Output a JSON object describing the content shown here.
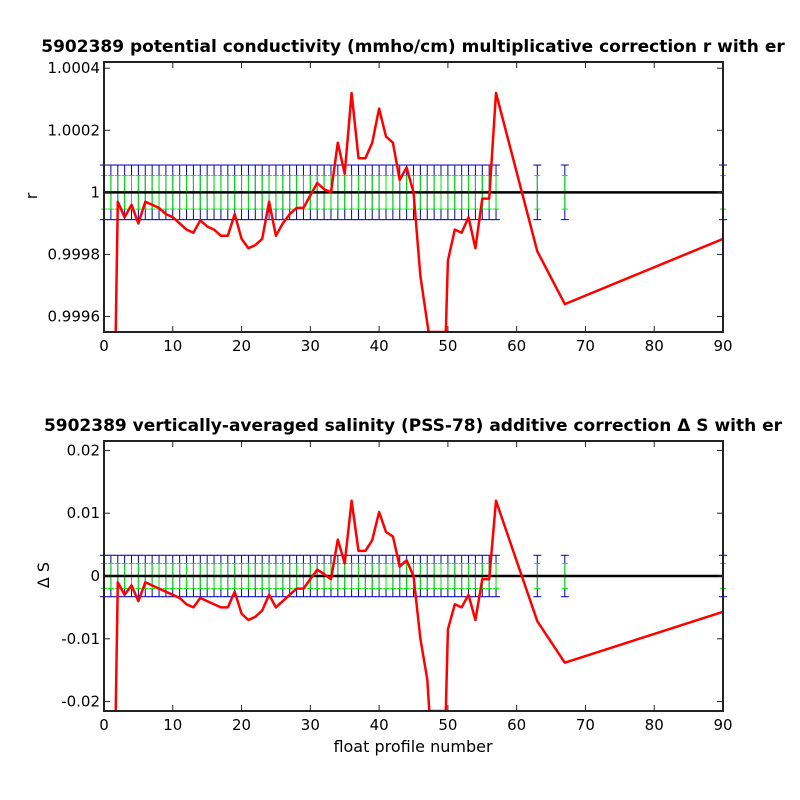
{
  "chart_data": [
    {
      "type": "line",
      "title": "5902389 potential conductivity (mmho/cm) multiplicative correction r with er",
      "xlabel": "",
      "ylabel": "r",
      "xlim": [
        0,
        90
      ],
      "ylim": [
        0.99955,
        1.00042
      ],
      "xticks": [
        0,
        10,
        20,
        30,
        40,
        50,
        60,
        70,
        80,
        90
      ],
      "xtick_labels": [
        "0",
        "10",
        "20",
        "30",
        "40",
        "50",
        "60",
        "70",
        "80",
        "90"
      ],
      "yticks": [
        0.9996,
        0.9998,
        1.0,
        1.0002,
        1.0004
      ],
      "ytick_labels": [
        "0.9996",
        "0.9998",
        "1",
        "1.0002",
        "1.0004"
      ],
      "reference_line": 1.0,
      "grid": false,
      "series": [
        {
          "color": "#ff0000",
          "x": [
            1.7,
            2,
            3,
            4,
            5,
            6,
            7,
            8,
            9,
            10,
            11,
            12,
            13,
            14,
            15,
            16,
            17,
            18,
            19,
            20,
            21,
            22,
            23,
            24,
            25,
            26,
            27,
            28,
            29,
            30,
            31,
            32,
            33,
            34,
            35,
            36,
            37,
            38,
            39,
            40,
            41,
            42,
            43,
            44,
            45,
            46,
            47.2,
            49.7,
            50,
            51,
            52,
            53,
            54,
            55,
            56,
            57,
            63,
            67,
            90
          ],
          "y": [
            0.99955,
            0.99997,
            0.99992,
            0.99996,
            0.9999,
            0.99997,
            0.99996,
            0.99995,
            0.99993,
            0.99992,
            0.9999,
            0.99988,
            0.99987,
            0.99991,
            0.99989,
            0.99988,
            0.99986,
            0.99986,
            0.99993,
            0.99985,
            0.99982,
            0.99983,
            0.99985,
            0.99997,
            0.99986,
            0.9999,
            0.99993,
            0.99995,
            0.99995,
            0.99999,
            1.00003,
            1.00001,
            1.0,
            1.00016,
            1.00006,
            1.00032,
            1.00011,
            1.00011,
            1.00016,
            1.00027,
            1.00018,
            1.00016,
            1.00004,
            1.00008,
            1.0,
            0.99973,
            0.99955,
            0.99955,
            0.99978,
            0.99988,
            0.99987,
            0.99992,
            0.99982,
            0.99998,
            0.99998,
            1.00032,
            0.99981,
            0.99964,
            0.99985
          ]
        }
      ],
      "error_bars": [
        {
          "color": "#0000b0",
          "x": [
            0,
            1,
            2,
            3,
            4,
            5,
            6,
            7,
            8,
            9,
            10,
            11,
            12,
            13,
            14,
            15,
            16,
            17,
            18,
            19,
            20,
            21,
            22,
            23,
            24,
            25,
            26,
            27,
            28,
            29,
            30,
            31,
            32,
            33,
            34,
            35,
            36,
            37,
            38,
            39,
            40,
            41,
            42,
            43,
            44,
            45,
            46,
            47,
            48,
            49,
            50,
            51,
            52,
            53,
            54,
            55,
            56,
            57,
            63,
            67,
            90
          ],
          "center": 1.0,
          "half_width": 8.8e-05
        },
        {
          "color": "#00ee00",
          "x": [
            0,
            1,
            2,
            3,
            4,
            5,
            6,
            7,
            8,
            9,
            10,
            11,
            12,
            13,
            14,
            15,
            16,
            17,
            18,
            19,
            20,
            21,
            22,
            23,
            24,
            25,
            26,
            27,
            28,
            29,
            30,
            31,
            32,
            33,
            34,
            35,
            36,
            37,
            38,
            39,
            40,
            41,
            42,
            43,
            44,
            45,
            46,
            47,
            48,
            49,
            50,
            51,
            52,
            53,
            54,
            55,
            56,
            57,
            63,
            67,
            90
          ],
          "center": 1.0,
          "half_width": 5.4e-05
        }
      ]
    },
    {
      "type": "line",
      "title": "5902389 vertically-averaged salinity (PSS-78) additive correction Δ S with er",
      "xlabel": "float profile number",
      "ylabel": "Δ S",
      "xlim": [
        0,
        90
      ],
      "ylim": [
        -0.0215,
        0.0215
      ],
      "xticks": [
        0,
        10,
        20,
        30,
        40,
        50,
        60,
        70,
        80,
        90
      ],
      "xtick_labels": [
        "0",
        "10",
        "20",
        "30",
        "40",
        "50",
        "60",
        "70",
        "80",
        "90"
      ],
      "yticks": [
        -0.02,
        -0.01,
        0,
        0.01,
        0.02
      ],
      "ytick_labels": [
        "-0.02",
        "-0.01",
        "0",
        "0.01",
        "0.02"
      ],
      "reference_line": 0,
      "grid": false,
      "series": [
        {
          "color": "#ff0000",
          "x": [
            1.7,
            2,
            3,
            4,
            5,
            6,
            7,
            8,
            9,
            10,
            11,
            12,
            13,
            14,
            15,
            16,
            17,
            18,
            19,
            20,
            21,
            22,
            23,
            24,
            25,
            26,
            27,
            28,
            29,
            30,
            31,
            32,
            33,
            34,
            35,
            36,
            37,
            38,
            39,
            40,
            41,
            42,
            43,
            44,
            45,
            46,
            47,
            47.3,
            49.7,
            50,
            51,
            52,
            53,
            54,
            55,
            56,
            57,
            63,
            67,
            90
          ],
          "y": [
            -0.0215,
            -0.001,
            -0.003,
            -0.0015,
            -0.004,
            -0.001,
            -0.0015,
            -0.002,
            -0.0025,
            -0.003,
            -0.0035,
            -0.0045,
            -0.005,
            -0.0035,
            -0.004,
            -0.0045,
            -0.005,
            -0.005,
            -0.0025,
            -0.006,
            -0.007,
            -0.0065,
            -0.0055,
            -0.003,
            -0.005,
            -0.004,
            -0.003,
            -0.002,
            -0.002,
            -0.0005,
            0.001,
            0.0003,
            -0.0005,
            0.0058,
            0.002,
            0.012,
            0.004,
            0.004,
            0.0057,
            0.0102,
            0.007,
            0.0063,
            0.0015,
            0.0025,
            0.0,
            -0.01,
            -0.0165,
            -0.0215,
            -0.0215,
            -0.0085,
            -0.0045,
            -0.005,
            -0.003,
            -0.007,
            -0.0005,
            -0.0005,
            0.012,
            -0.0072,
            -0.0138,
            -0.0057
          ]
        }
      ],
      "error_bars": [
        {
          "color": "#0000b0",
          "x": [
            0,
            1,
            2,
            3,
            4,
            5,
            6,
            7,
            8,
            9,
            10,
            11,
            12,
            13,
            14,
            15,
            16,
            17,
            18,
            19,
            20,
            21,
            22,
            23,
            24,
            25,
            26,
            27,
            28,
            29,
            30,
            31,
            32,
            33,
            34,
            35,
            36,
            37,
            38,
            39,
            40,
            41,
            42,
            43,
            44,
            45,
            46,
            47,
            48,
            49,
            50,
            51,
            52,
            53,
            54,
            55,
            56,
            57,
            63,
            67,
            90
          ],
          "center": 0,
          "half_width": 0.0033
        },
        {
          "color": "#00ee00",
          "x": [
            0,
            1,
            2,
            3,
            4,
            5,
            6,
            7,
            8,
            9,
            10,
            11,
            12,
            13,
            14,
            15,
            16,
            17,
            18,
            19,
            20,
            21,
            22,
            23,
            24,
            25,
            26,
            27,
            28,
            29,
            30,
            31,
            32,
            33,
            34,
            35,
            36,
            37,
            38,
            39,
            40,
            41,
            42,
            43,
            44,
            45,
            46,
            47,
            48,
            49,
            50,
            51,
            52,
            53,
            54,
            55,
            56,
            57,
            63,
            67,
            90
          ],
          "center": 0,
          "half_width": 0.002
        }
      ]
    }
  ]
}
